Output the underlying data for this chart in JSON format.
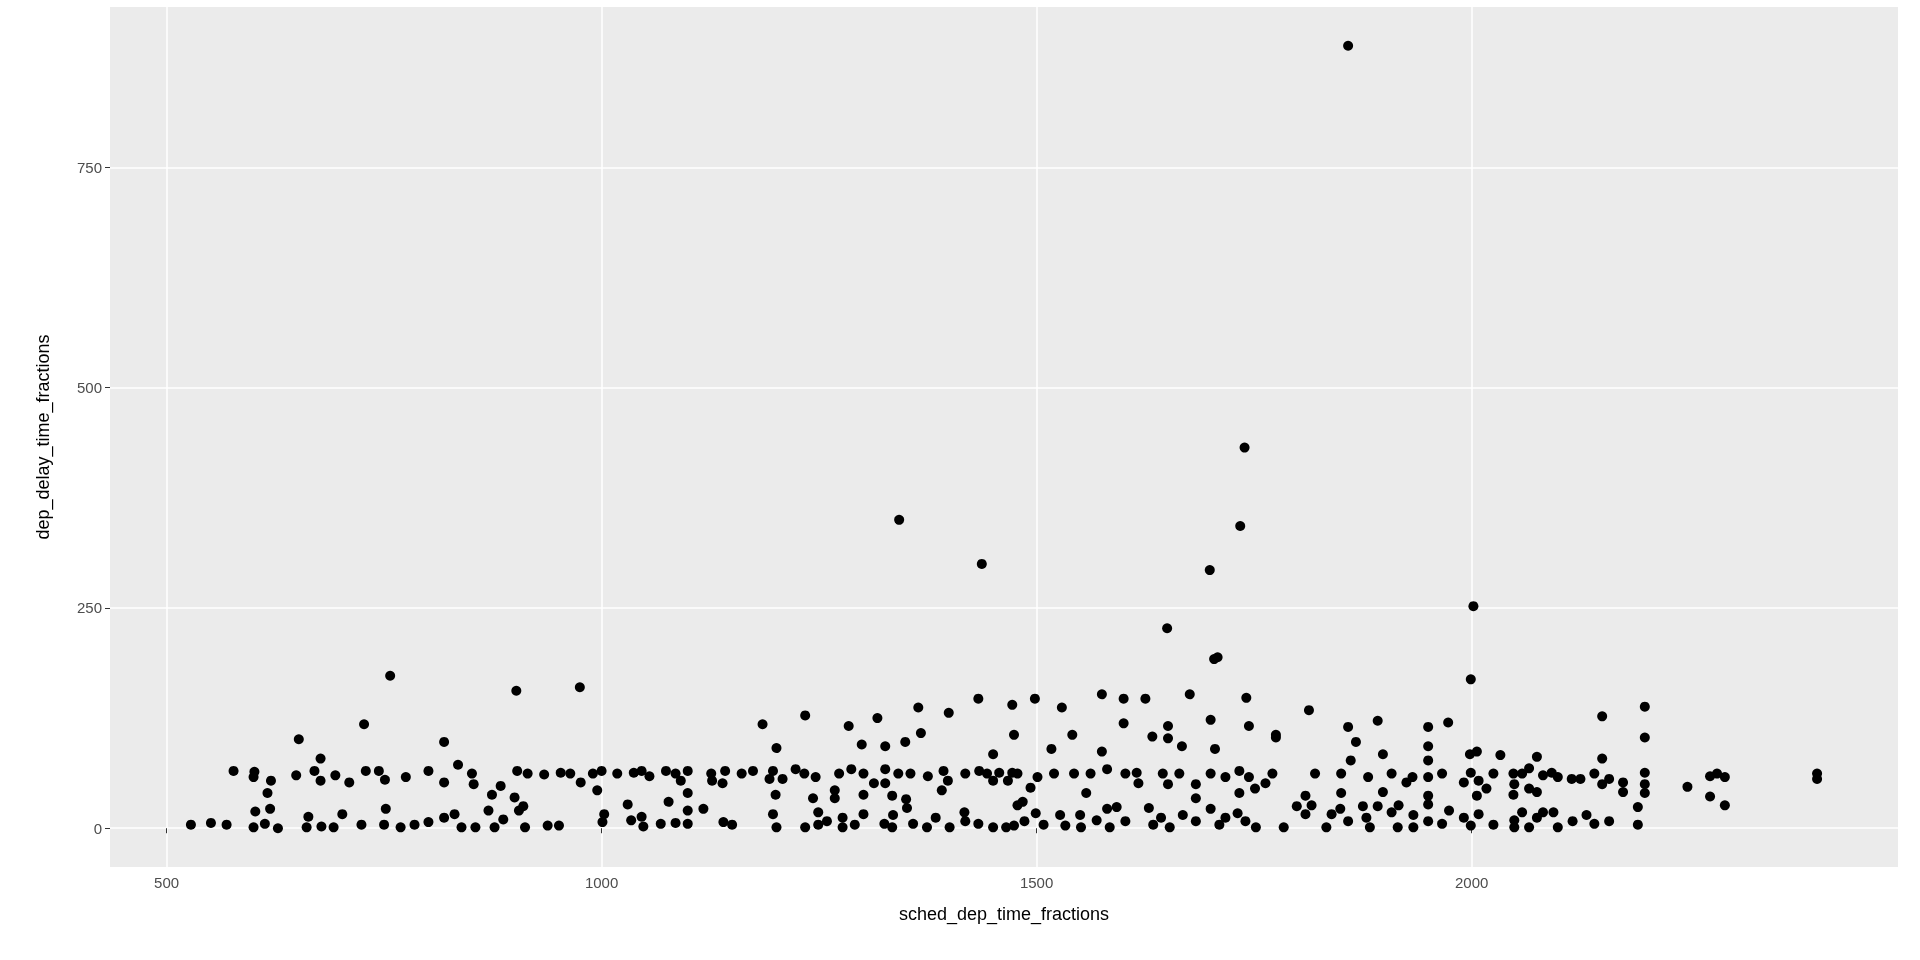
{
  "chart_data": {
    "type": "scatter",
    "xlabel": "sched_dep_time_fractions",
    "ylabel": "dep_delay_time_fractions",
    "color": "#000000",
    "marker": "circle",
    "grid": true,
    "xlim": [
      435,
      2490
    ],
    "ylim": [
      -44,
      932
    ],
    "xticks": [
      500,
      1000,
      1500,
      2000
    ],
    "yticks": [
      0,
      250,
      500,
      750
    ],
    "x": [
      1858,
      1739,
      1734,
      1699,
      1342,
      1437,
      2002,
      528,
      551,
      569,
      577,
      601,
      600,
      620,
      616,
      602,
      619,
      600,
      613,
      628,
      652,
      649,
      677,
      670,
      677,
      663,
      661,
      678,
      692,
      702,
      694,
      710,
      727,
      724,
      729,
      744,
      751,
      757,
      752,
      750,
      775,
      769,
      785,
      801,
      801,
      819,
      819,
      819,
      835,
      831,
      851,
      853,
      839,
      855,
      874,
      884,
      870,
      877,
      887,
      902,
      903,
      900,
      910,
      905,
      912,
      915,
      934,
      938,
      953,
      951,
      975,
      964,
      976,
      990,
      1000,
      995,
      1003,
      1001,
      1018,
      1030,
      1034,
      1037,
      1046,
      1055,
      1046,
      1048,
      1068,
      1074,
      1077,
      1085,
      1091,
      1099,
      1099,
      1099,
      1099,
      1085,
      1117,
      1126,
      1127,
      1139,
      1142,
      1140,
      1150,
      1161,
      1174,
      1185,
      1197,
      1193,
      1200,
      1201,
      1197,
      1201,
      1208,
      1223,
      1234,
      1233,
      1234,
      1243,
      1246,
      1249,
      1249,
      1259,
      1268,
      1268,
      1273,
      1277,
      1277,
      1284,
      1287,
      1291,
      1299,
      1301,
      1301,
      1301,
      1313,
      1317,
      1326,
      1326,
      1326,
      1325,
      1334,
      1335,
      1334,
      1341,
      1349,
      1350,
      1351,
      1355,
      1358,
      1364,
      1367,
      1375,
      1374,
      1384,
      1391,
      1393,
      1399,
      1400,
      1398,
      1418,
      1417,
      1418,
      1433,
      1434,
      1433,
      1443,
      1450,
      1450,
      1450,
      1457,
      1465,
      1467,
      1472,
      1474,
      1472,
      1478,
      1474,
      1498,
      1478,
      1493,
      1484,
      1499,
      1486,
      1508,
      1501,
      1517,
      1520,
      1529,
      1527,
      1533,
      1541,
      1543,
      1550,
      1551,
      1557,
      1562,
      1569,
      1575,
      1575,
      1581,
      1581,
      1584,
      1592,
      1600,
      1600,
      1602,
      1602,
      1615,
      1617,
      1625,
      1629,
      1633,
      1634,
      1645,
      1643,
      1650,
      1651,
      1651,
      1651,
      1653,
      1664,
      1667,
      1668,
      1676,
      1683,
      1683,
      1683,
      1700,
      1700,
      1705,
      1700,
      1708,
      1704,
      1710,
      1717,
      1717,
      1733,
      1733,
      1731,
      1741,
      1744,
      1744,
      1751,
      1752,
      1740,
      1763,
      1775,
      1775,
      1771,
      1784,
      1799,
      1809,
      1809,
      1813,
      1816,
      1820,
      1833,
      1839,
      1849,
      1850,
      1850,
      1858,
      1867,
      1861,
      1858,
      1875,
      1881,
      1879,
      1883,
      1892,
      1898,
      1898,
      1892,
      1908,
      1908,
      1916,
      1915,
      1925,
      1932,
      1933,
      1933,
      1950,
      1950,
      1950,
      1950,
      1950,
      1950,
      1950,
      1966,
      1966,
      1973,
      1974,
      1991,
      1991,
      1999,
      1998,
      2006,
      1999,
      2008,
      2006,
      2008,
      1999,
      2033,
      2025,
      2025,
      2048,
      2049,
      2048,
      2049,
      2049,
      2017,
      2058,
      2058,
      2066,
      2066,
      2066,
      2075,
      2075,
      2075,
      2082,
      2082,
      2094,
      2092,
      2099,
      2099,
      2115,
      2116,
      2125,
      2132,
      2141,
      2141,
      2150,
      2150,
      2150,
      2158,
      2158,
      2174,
      2174,
      2191,
      2191,
      2199,
      2199,
      2199,
      2199,
      2199,
      2248,
      2274,
      2282,
      2291,
      2274,
      2291,
      2397,
      2397
    ],
    "values": [
      888,
      432,
      343,
      293,
      350,
      300,
      252,
      4,
      6,
      4,
      65,
      64,
      58,
      54,
      40,
      19,
      22,
      1,
      5,
      0,
      101,
      60,
      79,
      65,
      54,
      13,
      1,
      2,
      1,
      16,
      60,
      52,
      118,
      4,
      65,
      65,
      55,
      173,
      22,
      4,
      58,
      1,
      4,
      65,
      7,
      98,
      52,
      12,
      72,
      16,
      62,
      50,
      1,
      1,
      38,
      48,
      20,
      1,
      10,
      156,
      65,
      35,
      25,
      20,
      1,
      62,
      61,
      3,
      63,
      3,
      160,
      62,
      52,
      62,
      65,
      43,
      16,
      7,
      62,
      27,
      9,
      63,
      65,
      59,
      13,
      2,
      5,
      65,
      30,
      62,
      54,
      65,
      40,
      20,
      5,
      6,
      22,
      62,
      54,
      51,
      65,
      7,
      4,
      62,
      65,
      118,
      65,
      56,
      38,
      91,
      16,
      1,
      56,
      67,
      128,
      62,
      1,
      34,
      58,
      18,
      4,
      8,
      43,
      34,
      62,
      12,
      1,
      116,
      67,
      4,
      95,
      62,
      38,
      16,
      51,
      125,
      93,
      51,
      67,
      5,
      37,
      15,
      1,
      62,
      98,
      33,
      23,
      62,
      5,
      137,
      108,
      59,
      1,
      12,
      43,
      65,
      131,
      1,
      54,
      62,
      18,
      8,
      147,
      65,
      5,
      62,
      84,
      54,
      1,
      63,
      1,
      54,
      140,
      106,
      63,
      26,
      3,
      147,
      62,
      46,
      30,
      17,
      8,
      4,
      58,
      90,
      62,
      137,
      15,
      3,
      106,
      62,
      15,
      1,
      40,
      62,
      9,
      152,
      87,
      67,
      22,
      1,
      24,
      147,
      119,
      62,
      8,
      63,
      51,
      147,
      23,
      104,
      4,
      62,
      12,
      227,
      116,
      102,
      50,
      1,
      62,
      93,
      15,
      152,
      50,
      34,
      8,
      123,
      62,
      90,
      22,
      194,
      192,
      4,
      58,
      12,
      65,
      40,
      17,
      148,
      116,
      58,
      45,
      1,
      8,
      51,
      106,
      103,
      62,
      1,
      25,
      37,
      16,
      134,
      26,
      62,
      1,
      16,
      22,
      40,
      62,
      115,
      98,
      77,
      8,
      25,
      58,
      12,
      1,
      122,
      84,
      41,
      25,
      62,
      18,
      26,
      1,
      52,
      58,
      15,
      1,
      115,
      93,
      77,
      58,
      37,
      27,
      8,
      62,
      5,
      120,
      20,
      52,
      12,
      169,
      84,
      87,
      63,
      54,
      37,
      16,
      3,
      83,
      62,
      4,
      62,
      50,
      38,
      9,
      1,
      45,
      62,
      18,
      68,
      45,
      1,
      81,
      41,
      12,
      60,
      18,
      18,
      63,
      58,
      1,
      56,
      8,
      56,
      15,
      62,
      5,
      127,
      79,
      50,
      56,
      8,
      52,
      41,
      24,
      4,
      138,
      103,
      63,
      50,
      40,
      47,
      59,
      62,
      58,
      36,
      26,
      62,
      56
    ]
  }
}
